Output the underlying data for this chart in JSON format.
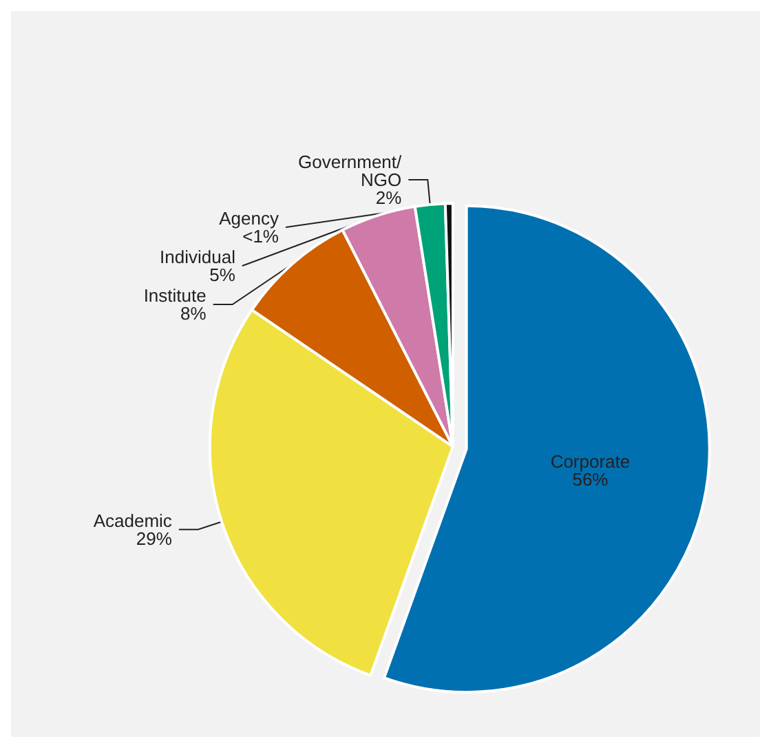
{
  "chart_data": {
    "type": "pie",
    "categories": [
      "Corporate",
      "Academic",
      "Institute",
      "Individual",
      "Government/\nNGO",
      "Agency"
    ],
    "values": [
      55.5,
      29,
      8,
      5,
      2,
      0.5
    ],
    "value_labels": [
      "56%",
      "29%",
      "8%",
      "5%",
      "2%",
      "<1%"
    ],
    "colors": [
      "#0070b0",
      "#f0e141",
      "#d05f00",
      "#cf7aa9",
      "#00a277",
      "#111111"
    ],
    "legend": false
  }
}
